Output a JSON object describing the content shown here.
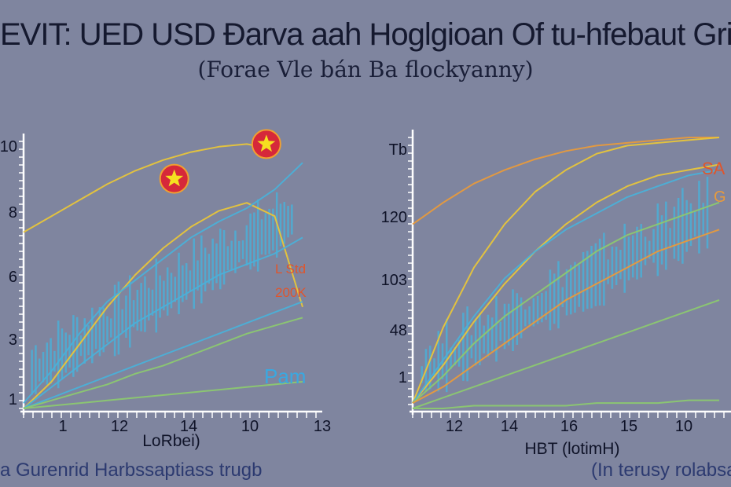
{
  "title": "EVIT: UED USD Đarva aah Hoglgioan Of tu-hfebaut Grid",
  "subtitle": "(Forae Vle bán Ba flockyanny)",
  "footer_left": "a Gurenrid Harbssaptiass trugb",
  "footer_right": "(In terusy rolabsal",
  "colors": {
    "background": "#7f859f",
    "blue": "#4bb0d8",
    "yellow": "#e8c53a",
    "orange": "#e89a3c",
    "green": "#8cc870",
    "marker_red": "#d6283a",
    "marker_star": "#f5e020",
    "annotation_red": "#e0552c",
    "annotation_blue": "#3aa8e0"
  },
  "chart_data": [
    {
      "type": "line",
      "xlabel": "LoRbei)",
      "x_ticks": [
        "1",
        "12",
        "14",
        "10",
        "13"
      ],
      "y_ticks": [
        "10",
        "8",
        "6",
        "3",
        "1"
      ],
      "xlim": [
        0,
        100
      ],
      "ylim": [
        0,
        100
      ],
      "grid": false,
      "annotations": [
        {
          "text": "L Std",
          "color": "annotation_red"
        },
        {
          "text": "200K",
          "color": "annotation_red"
        },
        {
          "text": "Pam",
          "color": "annotation_blue"
        }
      ],
      "markers": [
        {
          "x": 54,
          "y": 86,
          "icon": "star"
        },
        {
          "x": 87,
          "y": 99,
          "icon": "star"
        }
      ],
      "series": [
        {
          "color": "yellow",
          "x": [
            0,
            10,
            20,
            30,
            40,
            50,
            60,
            70,
            80,
            85
          ],
          "y": [
            66,
            72,
            78,
            84,
            89,
            93,
            96,
            98,
            99,
            98
          ]
        },
        {
          "color": "yellow",
          "x": [
            0,
            10,
            20,
            30,
            40,
            50,
            60,
            70,
            80,
            90,
            100
          ],
          "y": [
            0,
            10,
            24,
            38,
            50,
            60,
            68,
            74,
            77,
            72,
            38
          ]
        },
        {
          "color": "blue",
          "x": [
            0,
            10,
            20,
            30,
            40,
            50,
            60,
            70,
            80,
            90,
            100
          ],
          "y": [
            2,
            14,
            28,
            40,
            48,
            56,
            64,
            70,
            75,
            82,
            92
          ]
        },
        {
          "color": "blue",
          "x": [
            0,
            10,
            20,
            30,
            40,
            50,
            60,
            70,
            80,
            90,
            100
          ],
          "y": [
            0,
            8,
            16,
            24,
            32,
            38,
            44,
            50,
            54,
            58,
            64
          ]
        },
        {
          "color": "blue",
          "x": [
            0,
            10,
            20,
            30,
            40,
            50,
            60,
            70,
            80,
            90,
            100
          ],
          "y": [
            0,
            4,
            8,
            12,
            16,
            20,
            24,
            28,
            32,
            36,
            40
          ]
        },
        {
          "color": "green",
          "x": [
            0,
            10,
            20,
            30,
            40,
            50,
            60,
            70,
            80,
            90,
            100
          ],
          "y": [
            0,
            3,
            6,
            9,
            13,
            16,
            20,
            24,
            28,
            31,
            34
          ]
        },
        {
          "color": "green",
          "x": [
            0,
            10,
            20,
            30,
            40,
            50,
            60,
            70,
            80,
            90,
            100
          ],
          "y": [
            0,
            1,
            2,
            3,
            4,
            5,
            6,
            7,
            8,
            9,
            10
          ]
        }
      ]
    },
    {
      "type": "line",
      "xlabel": "HBT (lotimH)",
      "x_ticks": [
        "12",
        "14",
        "16",
        "15",
        "10"
      ],
      "y_ticks": [
        "Tb",
        "120",
        "103",
        "48",
        "1"
      ],
      "xlim": [
        0,
        100
      ],
      "ylim": [
        0,
        100
      ],
      "grid": false,
      "annotations": [
        {
          "text": "SA",
          "color": "annotation_red"
        },
        {
          "text": "G",
          "color": "orange"
        }
      ],
      "series": [
        {
          "color": "orange",
          "x": [
            0,
            10,
            20,
            30,
            40,
            50,
            60,
            70,
            80,
            90,
            100
          ],
          "y": [
            68,
            76,
            83,
            88,
            92,
            95,
            97,
            98,
            99,
            100,
            100
          ]
        },
        {
          "color": "yellow",
          "x": [
            0,
            10,
            20,
            30,
            40,
            50,
            60,
            70,
            80,
            90,
            100
          ],
          "y": [
            2,
            30,
            52,
            68,
            80,
            88,
            94,
            97,
            98,
            99,
            100
          ]
        },
        {
          "color": "yellow",
          "x": [
            0,
            10,
            20,
            30,
            40,
            50,
            60,
            70,
            80,
            90,
            100
          ],
          "y": [
            2,
            16,
            32,
            46,
            58,
            68,
            76,
            82,
            86,
            88,
            90
          ]
        },
        {
          "color": "blue",
          "x": [
            0,
            10,
            20,
            30,
            40,
            50,
            60,
            70,
            80,
            90,
            100
          ],
          "y": [
            2,
            18,
            34,
            48,
            58,
            66,
            72,
            78,
            82,
            86,
            88
          ]
        },
        {
          "color": "green",
          "x": [
            0,
            10,
            20,
            30,
            40,
            50,
            60,
            70,
            80,
            90,
            100
          ],
          "y": [
            2,
            12,
            24,
            34,
            42,
            50,
            58,
            64,
            68,
            72,
            76
          ]
        },
        {
          "color": "orange",
          "x": [
            0,
            10,
            20,
            30,
            40,
            50,
            60,
            70,
            80,
            90,
            100
          ],
          "y": [
            2,
            8,
            16,
            24,
            32,
            40,
            46,
            52,
            58,
            62,
            66
          ]
        },
        {
          "color": "green",
          "x": [
            0,
            10,
            20,
            30,
            40,
            50,
            60,
            70,
            80,
            90,
            100
          ],
          "y": [
            0,
            4,
            8,
            12,
            16,
            20,
            24,
            28,
            32,
            36,
            40
          ]
        },
        {
          "color": "green",
          "x": [
            0,
            10,
            20,
            30,
            40,
            50,
            60,
            70,
            80,
            90,
            100
          ],
          "y": [
            0,
            0,
            1,
            1,
            1,
            1,
            2,
            2,
            2,
            3,
            3
          ]
        }
      ]
    }
  ]
}
